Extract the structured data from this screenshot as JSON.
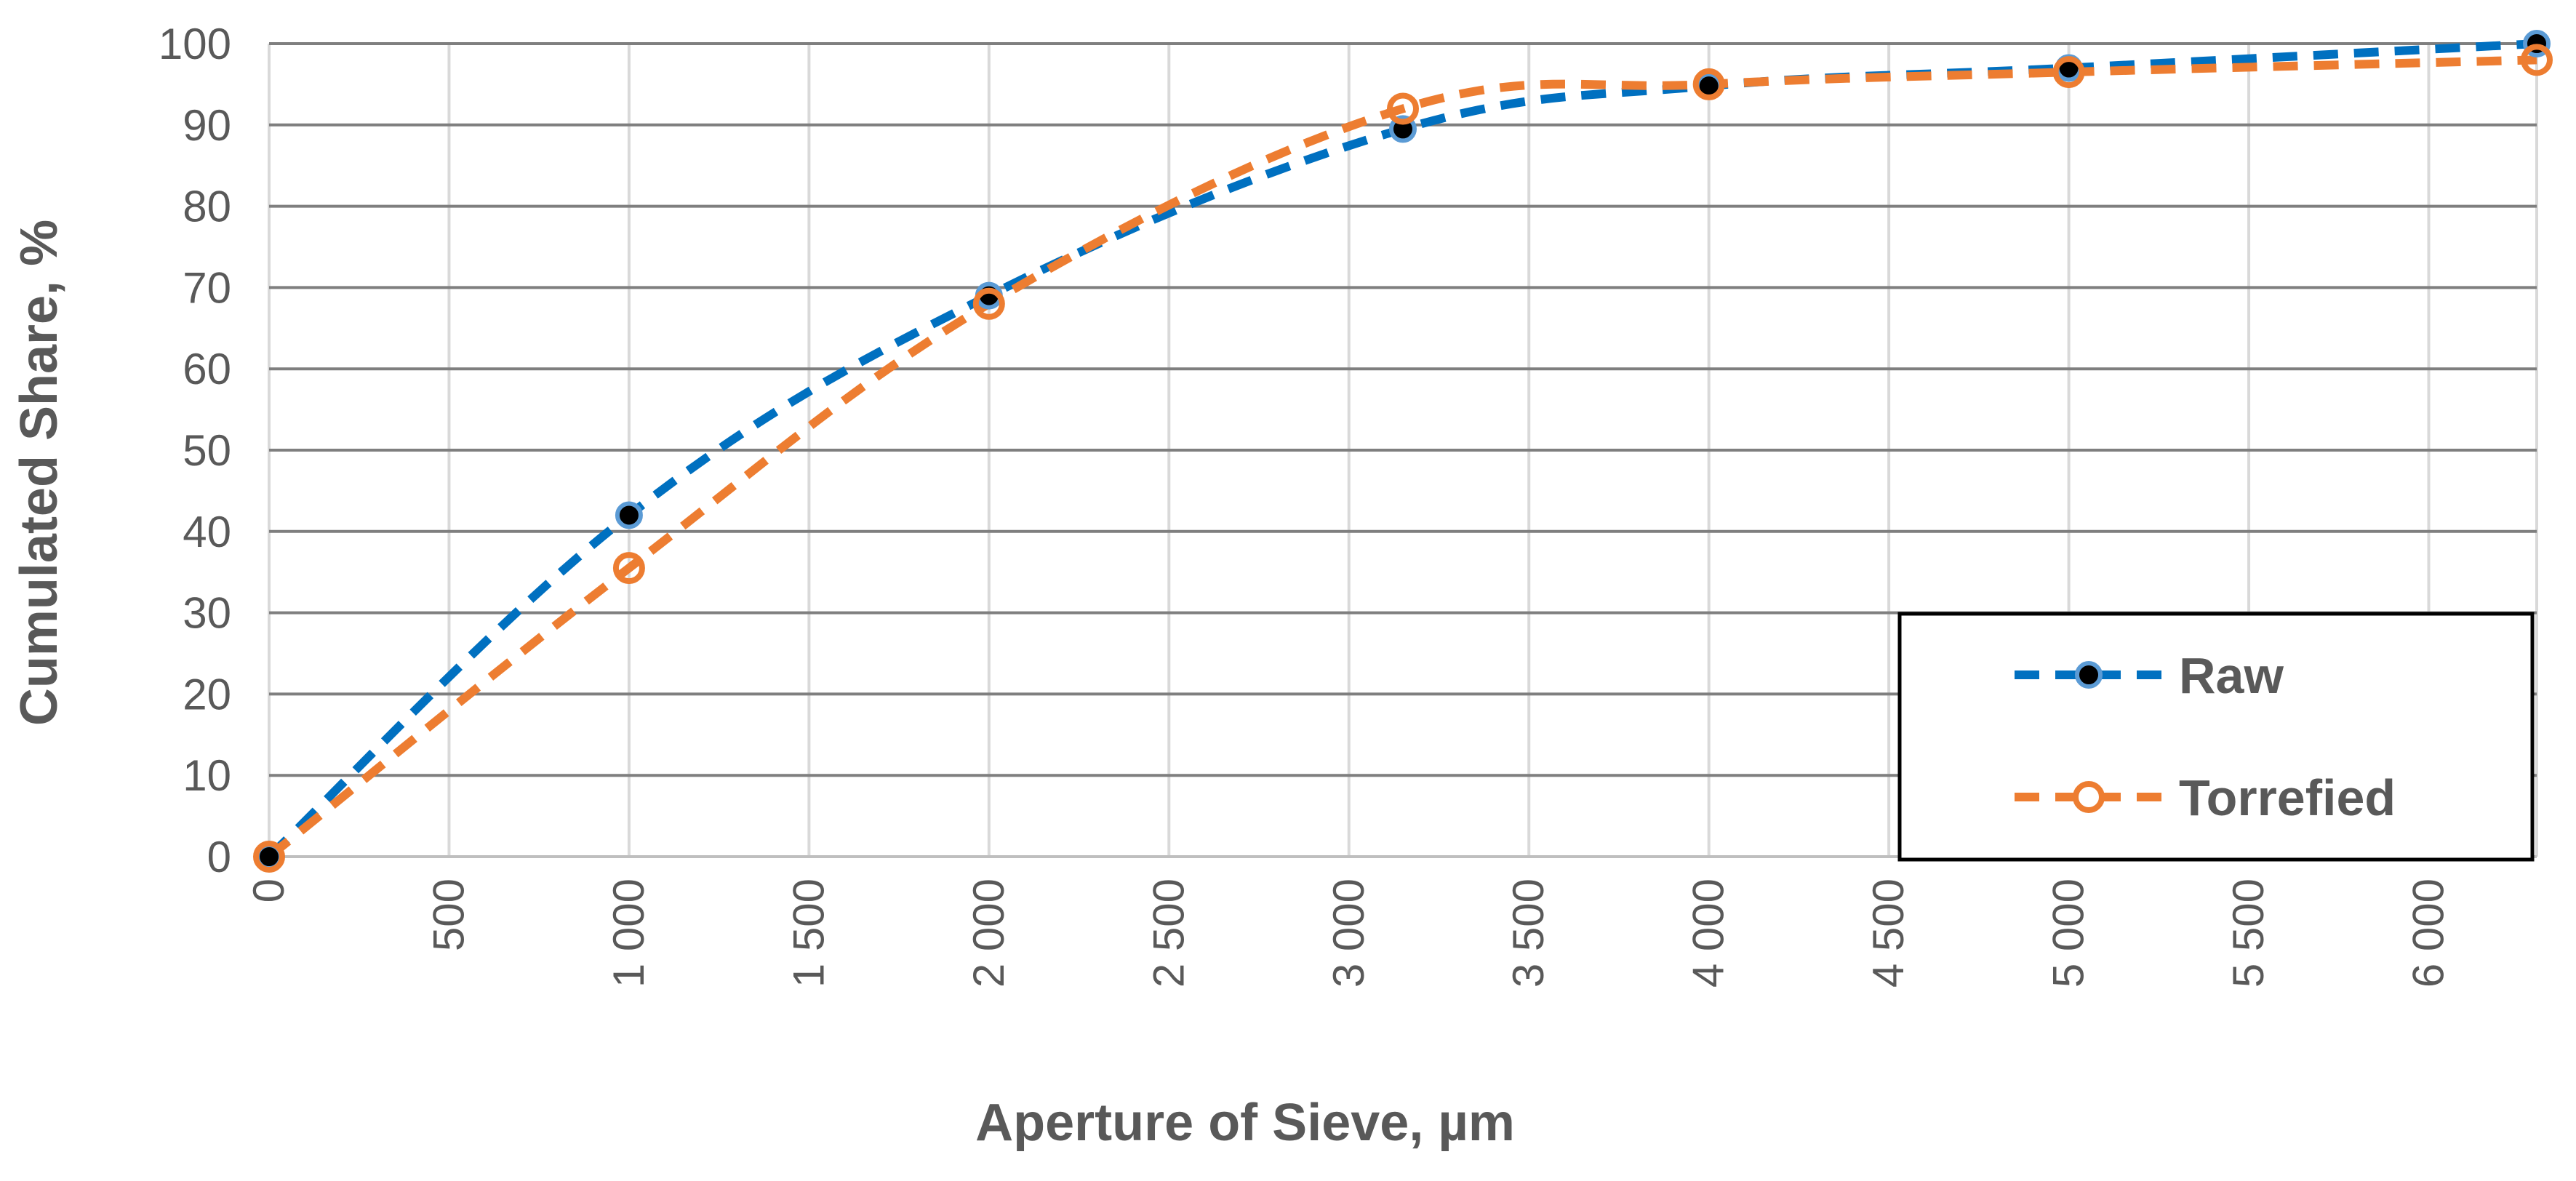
{
  "chart_data": {
    "type": "line",
    "title": "",
    "xlabel": "Aperture of Sieve, µm",
    "ylabel": "Cumulated Share, %",
    "xlim": [
      0,
      6300
    ],
    "ylim": [
      0,
      100
    ],
    "x_ticks": [
      0,
      500,
      1000,
      1500,
      2000,
      2500,
      3000,
      3500,
      4000,
      4500,
      5000,
      5500,
      6000
    ],
    "x_tick_labels": [
      "0",
      "500",
      "1 000",
      "1 500",
      "2 000",
      "2 500",
      "3 000",
      "3 500",
      "4 000",
      "4 500",
      "5 000",
      "5 500",
      "6 000"
    ],
    "y_ticks": [
      0,
      10,
      20,
      30,
      40,
      50,
      60,
      70,
      80,
      90,
      100
    ],
    "y_tick_labels": [
      "0",
      "10",
      "20",
      "30",
      "40",
      "50",
      "60",
      "70",
      "80",
      "90",
      "100"
    ],
    "grid": true,
    "legend_position": "bottom-right",
    "series": [
      {
        "name": "Raw",
        "color": "#0070C0",
        "marker": "filled-black-circle",
        "line_style": "dashed",
        "x": [
          0,
          1000,
          2000,
          3150,
          4000,
          5000,
          6300
        ],
        "y": [
          0,
          42,
          69,
          89.5,
          94.8,
          97,
          100
        ]
      },
      {
        "name": "Torrefied",
        "color": "#ED7D31",
        "marker": "hollow-circle",
        "line_style": "dashed",
        "x": [
          0,
          1000,
          2000,
          3150,
          4000,
          5000,
          6300
        ],
        "y": [
          0,
          35.5,
          68,
          92,
          95,
          96.5,
          98
        ]
      }
    ]
  }
}
